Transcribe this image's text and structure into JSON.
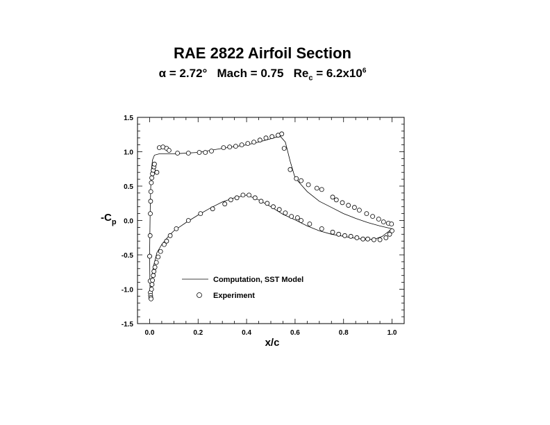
{
  "title": "RAE 2822 Airfoil Section",
  "subtitle": {
    "alpha_symbol": "α",
    "alpha_text": "= 2.72°",
    "mach_text": "Mach = 0.75",
    "re_prefix": "Re",
    "re_sub": "c",
    "re_value": "= 6.2x10",
    "re_exp": "6"
  },
  "chart_data": {
    "type": "scatter",
    "xlabel": "x/c",
    "ylabel_main": "-C",
    "ylabel_sub": "p",
    "xlim": [
      -0.05,
      1.05
    ],
    "ylim": [
      -1.5,
      1.5
    ],
    "xticks": [
      "0.0",
      "0.2",
      "0.4",
      "0.6",
      "0.8",
      "1.0"
    ],
    "yticks": [
      "-1.5",
      "-1.0",
      "-0.5",
      "0.0",
      "0.5",
      "1.0",
      "1.5"
    ],
    "legend": [
      "Computation, SST Model",
      "Experiment"
    ],
    "computation_upper": [
      [
        0.0,
        -0.45
      ],
      [
        0.002,
        0.1
      ],
      [
        0.005,
        0.55
      ],
      [
        0.008,
        0.75
      ],
      [
        0.012,
        0.88
      ],
      [
        0.02,
        0.95
      ],
      [
        0.04,
        0.97
      ],
      [
        0.1,
        0.97
      ],
      [
        0.2,
        0.99
      ],
      [
        0.3,
        1.05
      ],
      [
        0.4,
        1.1
      ],
      [
        0.45,
        1.14
      ],
      [
        0.5,
        1.19
      ],
      [
        0.52,
        1.21
      ],
      [
        0.54,
        1.22
      ],
      [
        0.56,
        1.14
      ],
      [
        0.58,
        0.86
      ],
      [
        0.6,
        0.62
      ],
      [
        0.65,
        0.42
      ],
      [
        0.7,
        0.28
      ],
      [
        0.75,
        0.19
      ],
      [
        0.8,
        0.1
      ],
      [
        0.85,
        0.03
      ],
      [
        0.9,
        -0.03
      ],
      [
        0.95,
        -0.08
      ],
      [
        1.0,
        -0.12
      ]
    ],
    "computation_lower": [
      [
        0.0,
        -0.45
      ],
      [
        0.001,
        -0.9
      ],
      [
        0.003,
        -1.12
      ],
      [
        0.007,
        -0.9
      ],
      [
        0.015,
        -0.68
      ],
      [
        0.03,
        -0.47
      ],
      [
        0.05,
        -0.35
      ],
      [
        0.08,
        -0.22
      ],
      [
        0.1,
        -0.15
      ],
      [
        0.15,
        -0.03
      ],
      [
        0.2,
        0.08
      ],
      [
        0.25,
        0.18
      ],
      [
        0.3,
        0.27
      ],
      [
        0.35,
        0.33
      ],
      [
        0.4,
        0.37
      ],
      [
        0.45,
        0.3
      ],
      [
        0.5,
        0.2
      ],
      [
        0.55,
        0.09
      ],
      [
        0.6,
        0.01
      ],
      [
        0.65,
        -0.08
      ],
      [
        0.7,
        -0.15
      ],
      [
        0.75,
        -0.2
      ],
      [
        0.8,
        -0.23
      ],
      [
        0.85,
        -0.26
      ],
      [
        0.9,
        -0.28
      ],
      [
        0.93,
        -0.27
      ],
      [
        0.96,
        -0.23
      ],
      [
        1.0,
        -0.12
      ]
    ],
    "experiment_upper": [
      [
        0.0,
        -0.52
      ],
      [
        0.002,
        -0.22
      ],
      [
        0.003,
        0.1
      ],
      [
        0.004,
        0.28
      ],
      [
        0.005,
        0.42
      ],
      [
        0.007,
        0.55
      ],
      [
        0.009,
        0.62
      ],
      [
        0.012,
        0.68
      ],
      [
        0.015,
        0.73
      ],
      [
        0.018,
        0.78
      ],
      [
        0.02,
        0.82
      ],
      [
        0.03,
        0.7
      ],
      [
        0.04,
        1.06
      ],
      [
        0.055,
        1.07
      ],
      [
        0.07,
        1.05
      ],
      [
        0.08,
        1.02
      ],
      [
        0.115,
        0.98
      ],
      [
        0.16,
        0.98
      ],
      [
        0.205,
        0.99
      ],
      [
        0.23,
        0.99
      ],
      [
        0.255,
        1.01
      ],
      [
        0.305,
        1.06
      ],
      [
        0.33,
        1.07
      ],
      [
        0.355,
        1.08
      ],
      [
        0.38,
        1.1
      ],
      [
        0.405,
        1.12
      ],
      [
        0.43,
        1.14
      ],
      [
        0.455,
        1.17
      ],
      [
        0.48,
        1.2
      ],
      [
        0.505,
        1.22
      ],
      [
        0.53,
        1.24
      ],
      [
        0.545,
        1.26
      ],
      [
        0.555,
        1.05
      ],
      [
        0.58,
        0.74
      ],
      [
        0.605,
        0.61
      ],
      [
        0.625,
        0.58
      ],
      [
        0.655,
        0.52
      ],
      [
        0.69,
        0.47
      ],
      [
        0.71,
        0.45
      ],
      [
        0.755,
        0.34
      ],
      [
        0.77,
        0.3
      ],
      [
        0.795,
        0.26
      ],
      [
        0.82,
        0.22
      ],
      [
        0.845,
        0.19
      ],
      [
        0.865,
        0.15
      ],
      [
        0.895,
        0.1
      ],
      [
        0.92,
        0.06
      ],
      [
        0.945,
        0.02
      ],
      [
        0.965,
        -0.02
      ],
      [
        0.985,
        -0.04
      ],
      [
        0.998,
        -0.05
      ]
    ],
    "experiment_lower": [
      [
        0.0,
        -0.52
      ],
      [
        0.002,
        -0.88
      ],
      [
        0.003,
        -1.05
      ],
      [
        0.004,
        -1.09
      ],
      [
        0.005,
        -1.12
      ],
      [
        0.006,
        -1.14
      ],
      [
        0.008,
        -1.0
      ],
      [
        0.01,
        -0.93
      ],
      [
        0.012,
        -0.87
      ],
      [
        0.015,
        -0.8
      ],
      [
        0.018,
        -0.74
      ],
      [
        0.022,
        -0.68
      ],
      [
        0.028,
        -0.61
      ],
      [
        0.035,
        -0.53
      ],
      [
        0.045,
        -0.45
      ],
      [
        0.06,
        -0.35
      ],
      [
        0.07,
        -0.3
      ],
      [
        0.085,
        -0.22
      ],
      [
        0.11,
        -0.12
      ],
      [
        0.16,
        0.0
      ],
      [
        0.21,
        0.1
      ],
      [
        0.26,
        0.17
      ],
      [
        0.31,
        0.24
      ],
      [
        0.335,
        0.3
      ],
      [
        0.36,
        0.33
      ],
      [
        0.385,
        0.37
      ],
      [
        0.41,
        0.37
      ],
      [
        0.435,
        0.33
      ],
      [
        0.46,
        0.28
      ],
      [
        0.485,
        0.25
      ],
      [
        0.51,
        0.2
      ],
      [
        0.535,
        0.16
      ],
      [
        0.56,
        0.11
      ],
      [
        0.585,
        0.06
      ],
      [
        0.61,
        0.04
      ],
      [
        0.625,
        0.0
      ],
      [
        0.66,
        -0.05
      ],
      [
        0.71,
        -0.12
      ],
      [
        0.755,
        -0.17
      ],
      [
        0.78,
        -0.2
      ],
      [
        0.805,
        -0.22
      ],
      [
        0.83,
        -0.23
      ],
      [
        0.855,
        -0.25
      ],
      [
        0.88,
        -0.27
      ],
      [
        0.9,
        -0.27
      ],
      [
        0.925,
        -0.28
      ],
      [
        0.95,
        -0.28
      ],
      [
        0.975,
        -0.25
      ],
      [
        0.99,
        -0.2
      ],
      [
        1.0,
        -0.15
      ]
    ]
  }
}
